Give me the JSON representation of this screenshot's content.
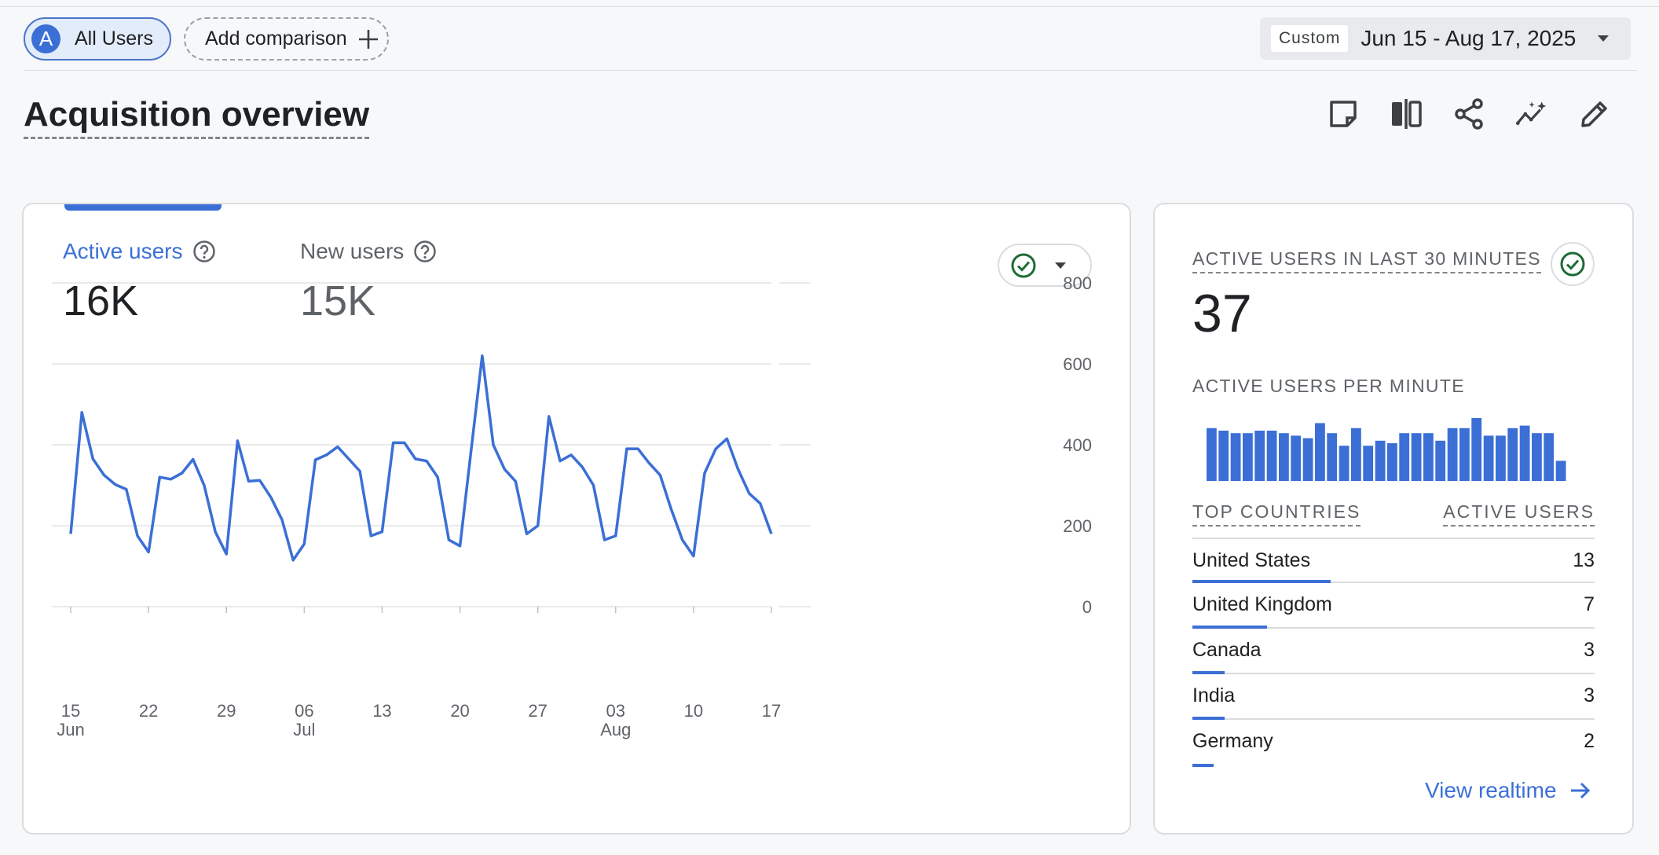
{
  "toolbar": {
    "segment_avatar": "A",
    "segment_label": "All Users",
    "add_comparison_label": "Add comparison",
    "date_mode": "Custom",
    "date_range": "Jun 15 - Aug 17, 2025"
  },
  "page": {
    "title": "Acquisition overview"
  },
  "actions": [
    "note-icon",
    "compare-icon",
    "share-icon",
    "insights-icon",
    "edit-icon"
  ],
  "colors": {
    "accent": "#3b6fd6",
    "ok": "#1e8e3e"
  },
  "overview": {
    "metrics": [
      {
        "label": "Active users",
        "value": "16K"
      },
      {
        "label": "New users",
        "value": "15K"
      }
    ]
  },
  "chart_data": {
    "type": "line",
    "series": [
      {
        "values": [
          180,
          480,
          365,
          325,
          302,
          290,
          175,
          135,
          320,
          315,
          330,
          364,
          300,
          185,
          130,
          410,
          310,
          312,
          270,
          215,
          115,
          155,
          363,
          375,
          395,
          365,
          335,
          175,
          185,
          405,
          405,
          365,
          360,
          320,
          165,
          150,
          385,
          620,
          400,
          340,
          310,
          180,
          200,
          470,
          360,
          375,
          345,
          300,
          165,
          175,
          390,
          390,
          355,
          325,
          240,
          165,
          125,
          330,
          390,
          415,
          340,
          280,
          255,
          180
        ]
      }
    ],
    "x_tick_labels": [
      {
        "day": "15",
        "month": "Jun"
      },
      {
        "day": "22",
        "month": ""
      },
      {
        "day": "29",
        "month": ""
      },
      {
        "day": "06",
        "month": "Jul"
      },
      {
        "day": "13",
        "month": ""
      },
      {
        "day": "20",
        "month": ""
      },
      {
        "day": "27",
        "month": ""
      },
      {
        "day": "03",
        "month": "Aug"
      },
      {
        "day": "10",
        "month": ""
      },
      {
        "day": "17",
        "month": ""
      }
    ],
    "x_range": [
      "2025-06-15",
      "2025-08-17"
    ],
    "ylim": [
      0,
      800
    ],
    "y_ticks": [
      "800",
      "600",
      "400",
      "200",
      "0"
    ],
    "grid": true
  },
  "realtime": {
    "heading": "ACTIVE USERS IN LAST 30 MINUTES",
    "value": "37",
    "per_minute_heading": "ACTIVE USERS PER MINUTE",
    "per_minute_values": [
      2.1,
      2.0,
      1.9,
      1.9,
      2.0,
      2.0,
      1.9,
      1.8,
      1.7,
      2.3,
      1.9,
      1.4,
      2.1,
      1.4,
      1.6,
      1.5,
      1.9,
      1.9,
      1.9,
      1.6,
      2.1,
      2.1,
      2.5,
      1.8,
      1.8,
      2.1,
      2.2,
      1.9,
      1.9,
      0.8
    ],
    "countries_heading": "TOP COUNTRIES",
    "users_heading": "ACTIVE USERS",
    "countries": [
      {
        "name": "United States",
        "value": "13"
      },
      {
        "name": "United Kingdom",
        "value": "7"
      },
      {
        "name": "Canada",
        "value": "3"
      },
      {
        "name": "India",
        "value": "3"
      },
      {
        "name": "Germany",
        "value": "2"
      }
    ],
    "view_link": "View realtime"
  }
}
